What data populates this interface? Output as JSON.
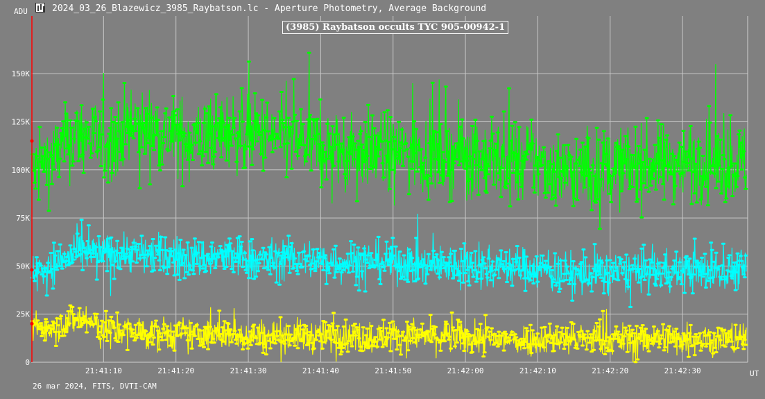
{
  "window": {
    "title": "2024_03_26_Blazewicz_3985_Raybatson.lc - Aperture Photometry, Average Background",
    "icon": "lightcurve-app-icon"
  },
  "footer": "26 mar 2024, FITS, DVTI-CAM",
  "chart_data": {
    "type": "line",
    "title": "(3985) Raybatson occults TYC 905-00942-1",
    "xlabel": "UT",
    "ylabel": "ADU",
    "x_start": "21:41:00",
    "x_end": "21:42:39",
    "xlim": [
      "21:41:00",
      "21:42:39"
    ],
    "ylim": [
      0,
      180000
    ],
    "y_ticks": [
      {
        "value": 0,
        "label": "0"
      },
      {
        "value": 25000,
        "label": "25K"
      },
      {
        "value": 50000,
        "label": "50K"
      },
      {
        "value": 75000,
        "label": "75K"
      },
      {
        "value": 100000,
        "label": "100K"
      },
      {
        "value": 125000,
        "label": "125K"
      },
      {
        "value": 150000,
        "label": "150K"
      }
    ],
    "x_ticks": [
      "21:41:10",
      "21:41:20",
      "21:41:30",
      "21:41:40",
      "21:41:50",
      "21:42:00",
      "21:42:10",
      "21:42:20",
      "21:42:30"
    ],
    "grid": true,
    "background": "#808080",
    "grid_color": "#c8c8c8",
    "cursor_color": "#ff0000",
    "series": [
      {
        "color": "#00ff00",
        "values": [
          98000,
          108000,
          120000,
          113000,
          122000,
          121000,
          118000,
          116000,
          120000,
          119000,
          117000,
          115000,
          112000,
          109000,
          111000,
          108000,
          110000,
          107000,
          109000,
          106000,
          104000,
          105000,
          100000,
          99000,
          101000,
          102000,
          103000,
          104000,
          105000,
          103000,
          104000
        ],
        "spread": 38000
      },
      {
        "color": "#00ffff",
        "values": [
          46000,
          52000,
          57000,
          56000,
          57000,
          56000,
          55000,
          54000,
          55000,
          54000,
          53000,
          54000,
          53000,
          52000,
          53000,
          52000,
          51000,
          50000,
          51000,
          50000,
          50000,
          49000,
          47000,
          45000,
          46000,
          47000,
          47000,
          48000,
          47000,
          48000,
          49000
        ],
        "spread": 20000
      },
      {
        "color": "#ffff00",
        "values": [
          18000,
          19000,
          23000,
          17000,
          16000,
          15000,
          15000,
          14000,
          15000,
          14000,
          14000,
          14000,
          13000,
          14000,
          13000,
          14000,
          14000,
          13000,
          13000,
          12000,
          12000,
          12000,
          13000,
          12000,
          12000,
          12000,
          13000,
          12000,
          13000,
          12000,
          13000
        ],
        "spread": 16000
      }
    ]
  }
}
